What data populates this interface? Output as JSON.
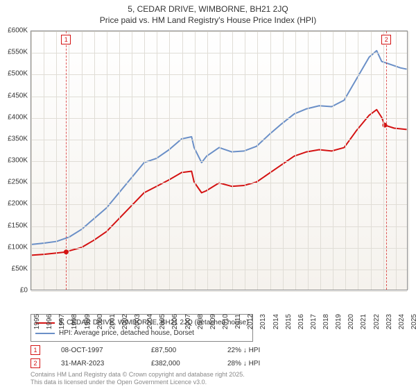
{
  "title": {
    "line1": "5, CEDAR DRIVE, WIMBORNE, BH21 2JQ",
    "line2": "Price paid vs. HM Land Registry's House Price Index (HPI)"
  },
  "chart": {
    "type": "line",
    "background_gradient_top": "#ffffff",
    "background_gradient_bottom": "#f5f2ed",
    "grid_color": "#e0ddd6",
    "border_color": "#888888",
    "ylim": [
      0,
      600
    ],
    "ytick_step": 50,
    "ytick_prefix": "£",
    "ytick_suffix": "K",
    "yticks": [
      0,
      50,
      100,
      150,
      200,
      250,
      300,
      350,
      400,
      450,
      500,
      550,
      600
    ],
    "x_years": [
      1995,
      1996,
      1997,
      1998,
      1999,
      2000,
      2001,
      2002,
      2003,
      2004,
      2005,
      2006,
      2007,
      2008,
      2009,
      2010,
      2011,
      2012,
      2013,
      2014,
      2015,
      2016,
      2017,
      2018,
      2019,
      2020,
      2021,
      2022,
      2023,
      2024,
      2025
    ],
    "series": [
      {
        "id": "price_paid",
        "label": "5, CEDAR DRIVE, WIMBORNE, BH21 2JQ (detached house)",
        "color": "#d41212",
        "line_width": 2,
        "values_by_year": [
          [
            1995,
            80
          ],
          [
            1996,
            82
          ],
          [
            1997,
            85
          ],
          [
            1997.77,
            87.5
          ],
          [
            1998,
            90
          ],
          [
            1999,
            98
          ],
          [
            2000,
            115
          ],
          [
            2001,
            135
          ],
          [
            2002,
            165
          ],
          [
            2003,
            195
          ],
          [
            2004,
            225
          ],
          [
            2005,
            240
          ],
          [
            2006,
            255
          ],
          [
            2007,
            272
          ],
          [
            2007.8,
            275
          ],
          [
            2008,
            250
          ],
          [
            2008.6,
            225
          ],
          [
            2009,
            230
          ],
          [
            2010,
            248
          ],
          [
            2011,
            240
          ],
          [
            2012,
            242
          ],
          [
            2013,
            250
          ],
          [
            2014,
            270
          ],
          [
            2015,
            290
          ],
          [
            2016,
            310
          ],
          [
            2017,
            320
          ],
          [
            2018,
            325
          ],
          [
            2019,
            322
          ],
          [
            2020,
            330
          ],
          [
            2021,
            370
          ],
          [
            2022,
            405
          ],
          [
            2022.6,
            418
          ],
          [
            2023,
            400
          ],
          [
            2023.25,
            382
          ],
          [
            2024,
            375
          ],
          [
            2025,
            372
          ]
        ],
        "sale_points": [
          {
            "marker": "1",
            "year": 1997.77,
            "value": 87.5
          },
          {
            "marker": "2",
            "year": 2023.25,
            "value": 382
          }
        ]
      },
      {
        "id": "hpi",
        "label": "HPI: Average price, detached house, Dorset",
        "color": "#6a8fc7",
        "line_width": 2,
        "values_by_year": [
          [
            1995,
            105
          ],
          [
            1996,
            108
          ],
          [
            1997,
            112
          ],
          [
            1998,
            122
          ],
          [
            1999,
            140
          ],
          [
            2000,
            165
          ],
          [
            2001,
            190
          ],
          [
            2002,
            225
          ],
          [
            2003,
            260
          ],
          [
            2004,
            295
          ],
          [
            2005,
            305
          ],
          [
            2006,
            325
          ],
          [
            2007,
            350
          ],
          [
            2007.8,
            355
          ],
          [
            2008,
            330
          ],
          [
            2008.6,
            295
          ],
          [
            2009,
            310
          ],
          [
            2010,
            330
          ],
          [
            2011,
            320
          ],
          [
            2012,
            322
          ],
          [
            2013,
            333
          ],
          [
            2014,
            360
          ],
          [
            2015,
            385
          ],
          [
            2016,
            408
          ],
          [
            2017,
            420
          ],
          [
            2018,
            427
          ],
          [
            2019,
            425
          ],
          [
            2020,
            440
          ],
          [
            2021,
            490
          ],
          [
            2022,
            540
          ],
          [
            2022.6,
            555
          ],
          [
            2023,
            530
          ],
          [
            2024,
            520
          ],
          [
            2024.5,
            515
          ],
          [
            2025,
            512
          ]
        ]
      }
    ]
  },
  "legend": {
    "items": [
      {
        "color": "#d41212",
        "label": "5, CEDAR DRIVE, WIMBORNE, BH21 2JQ (detached house)"
      },
      {
        "color": "#6a8fc7",
        "label": "HPI: Average price, detached house, Dorset"
      }
    ]
  },
  "marker_rows": [
    {
      "marker": "1",
      "date": "08-OCT-1997",
      "price": "£87,500",
      "delta": "22% ↓ HPI"
    },
    {
      "marker": "2",
      "date": "31-MAR-2023",
      "price": "£382,000",
      "delta": "28% ↓ HPI"
    }
  ],
  "footer": {
    "line1": "Contains HM Land Registry data © Crown copyright and database right 2025.",
    "line2": "This data is licensed under the Open Government Licence v3.0."
  }
}
